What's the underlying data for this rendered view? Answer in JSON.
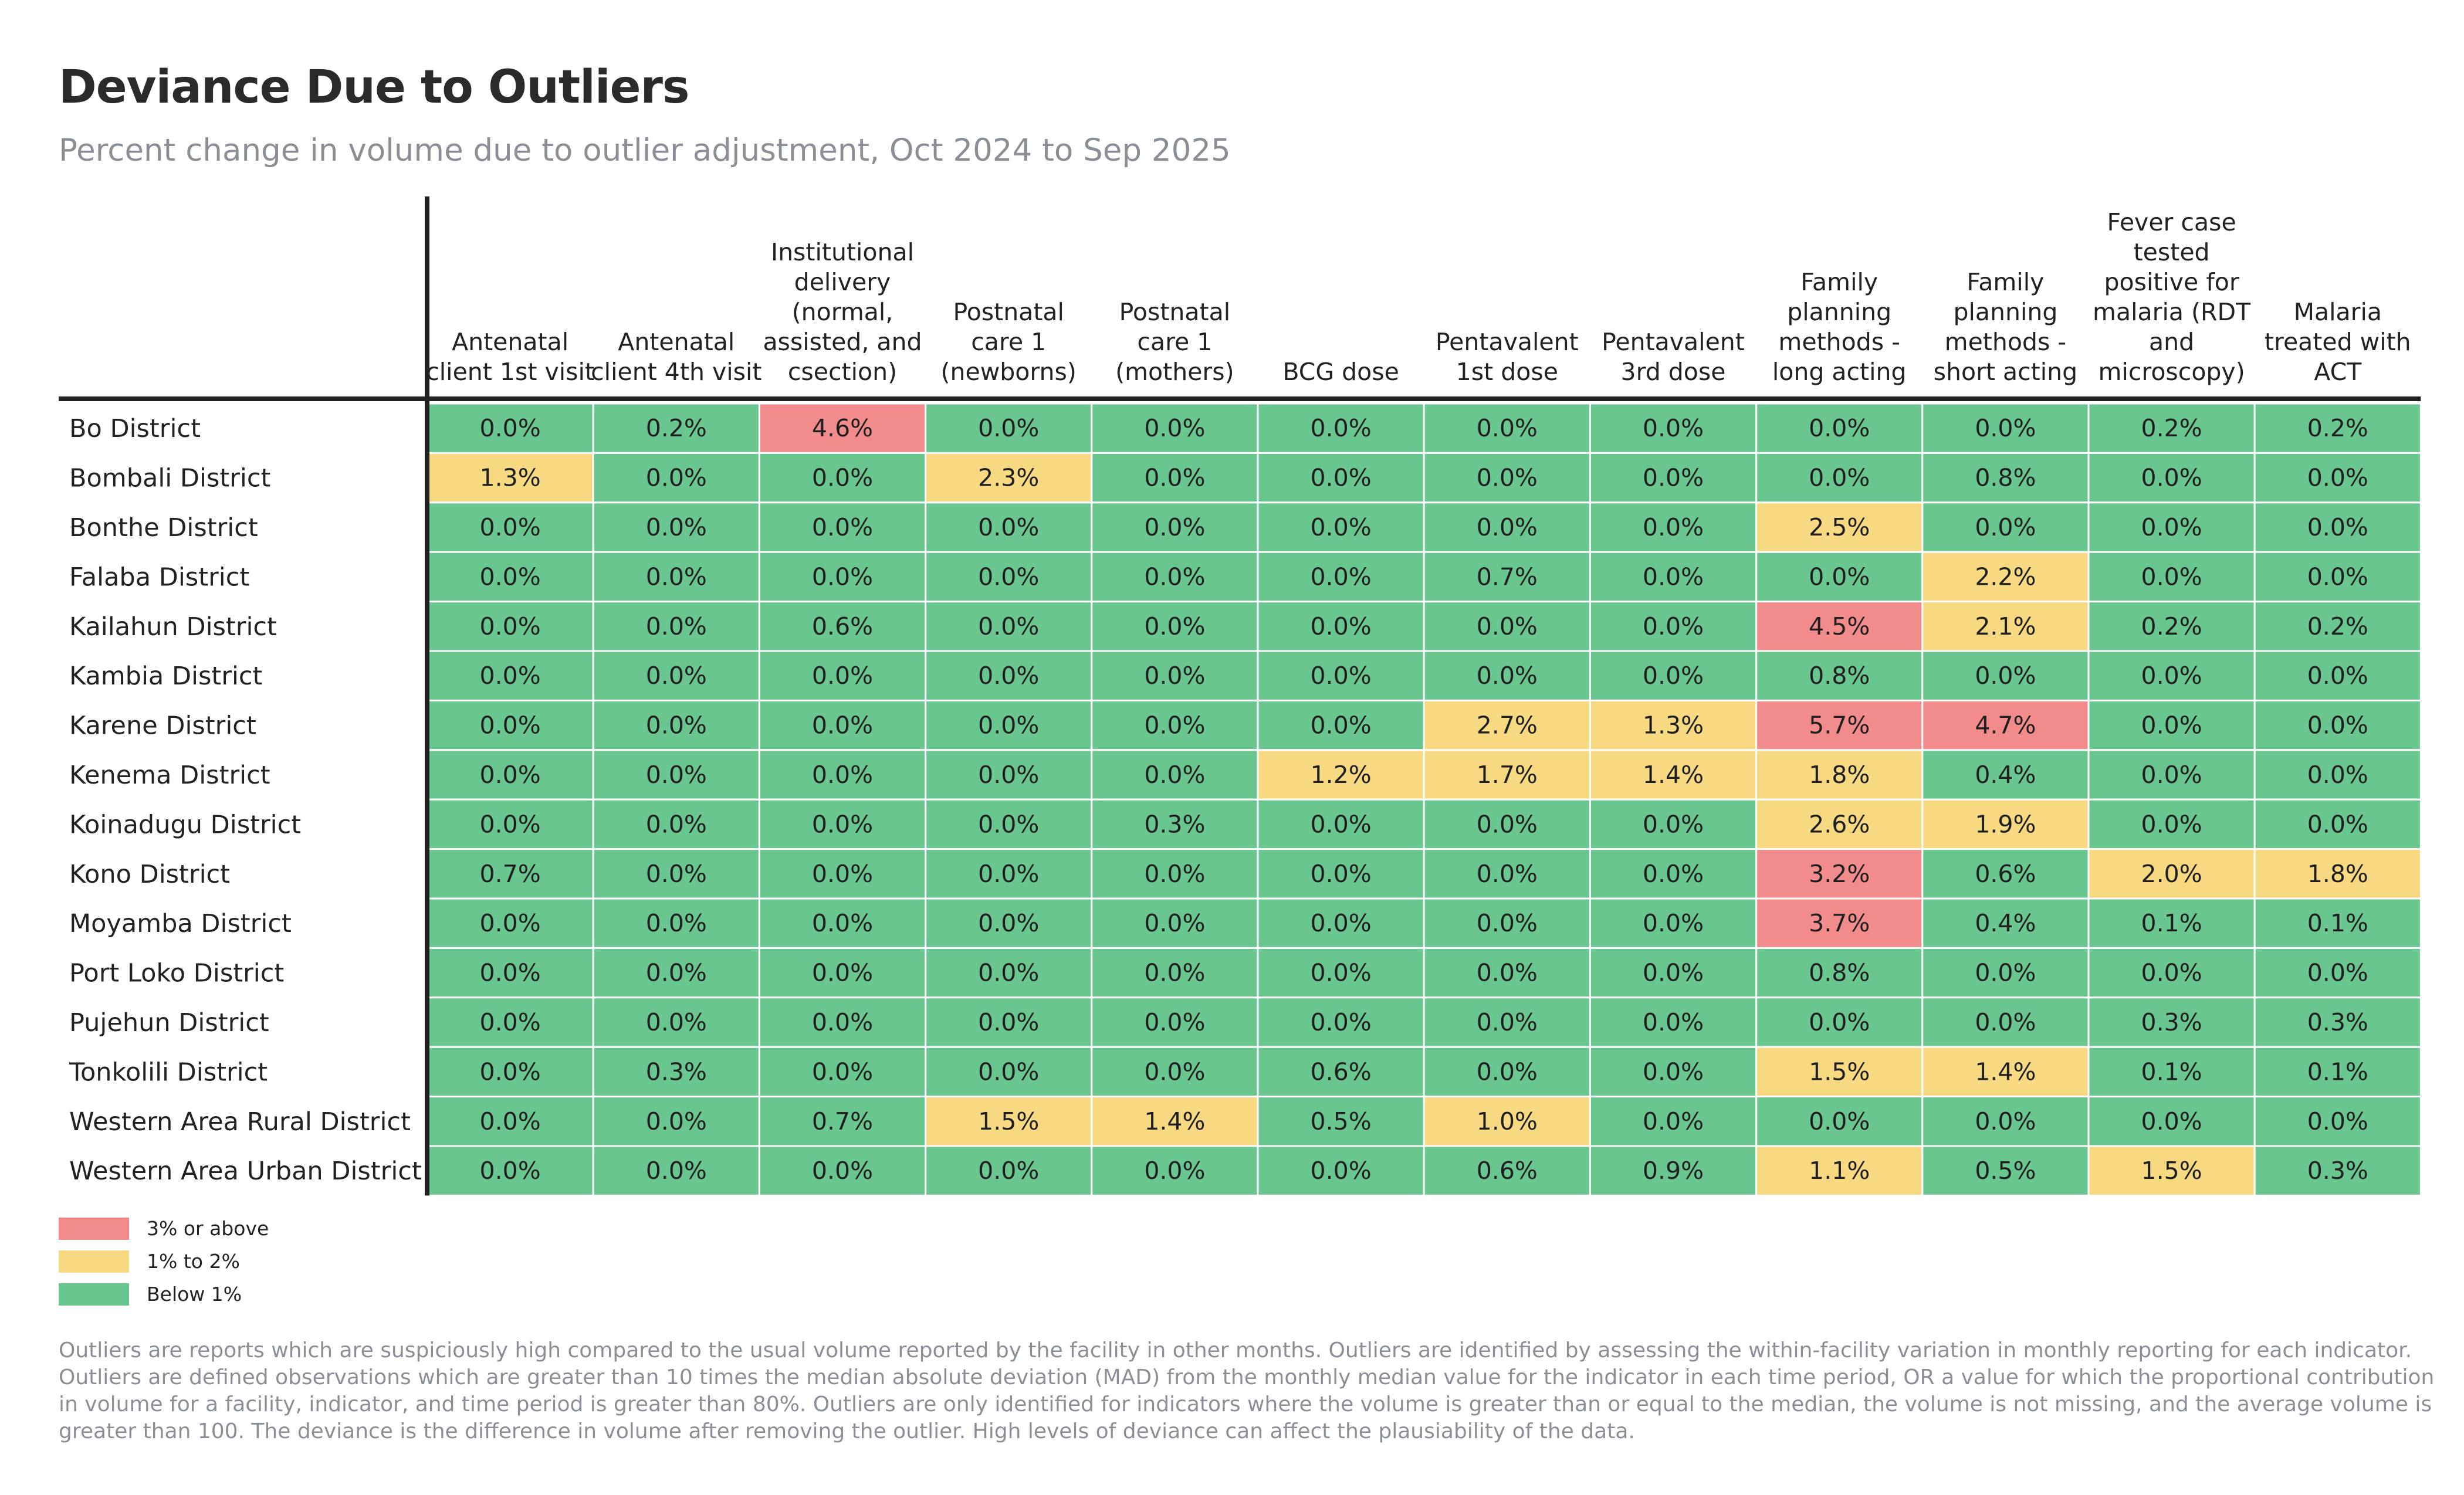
{
  "title": "Deviance Due to Outliers",
  "subtitle": "Percent change in volume due to outlier adjustment, Oct 2024 to Sep 2025",
  "footnote": "Outliers are reports which are suspiciously high compared to the usual volume reported by the facility in other months. Outliers are identified by assessing the within-facility variation in monthly reporting for each indicator. Outliers are defined observations which are greater than 10 times the median absolute deviation (MAD) from the monthly median value for the indicator in each time period, OR a value for which the proportional contribution in volume for a facility, indicator, and time period is greater than 80%. Outliers are only identified for indicators where the volume is greater than or equal to the median, the volume is not missing, and the average volume is greater than 100. The deviance is the difference in volume after removing the outlier. High levels of deviance can affect the plausiability of the data.",
  "colors": {
    "high": "#f28b8b",
    "mid": "#f7d982",
    "low": "#6ac68f",
    "grid": "#ffffff",
    "axis": "#222222"
  },
  "legend": [
    {
      "label": "3% or above",
      "color": "#f28b8b"
    },
    {
      "label": "1% to 2%",
      "color": "#f7d982"
    },
    {
      "label": "Below 1%",
      "color": "#6ac68f"
    }
  ],
  "chart_data": {
    "type": "heatmap",
    "value_format": "percent_1dp",
    "thresholds": {
      "high_min": 3.0,
      "mid_min": 1.0
    },
    "columns": [
      [
        "Antenatal",
        "client 1st visit"
      ],
      [
        "Antenatal",
        "client 4th visit"
      ],
      [
        "Institutional",
        "delivery",
        "(normal,",
        "assisted, and",
        "csection)"
      ],
      [
        "Postnatal",
        "care 1",
        "(newborns)"
      ],
      [
        "Postnatal",
        "care 1",
        "(mothers)"
      ],
      [
        "BCG dose"
      ],
      [
        "Pentavalent",
        "1st dose"
      ],
      [
        "Pentavalent",
        "3rd dose"
      ],
      [
        "Family",
        "planning",
        "methods -",
        "long acting"
      ],
      [
        "Family",
        "planning",
        "methods -",
        "short acting"
      ],
      [
        "Fever case",
        "tested",
        "positive for",
        "malaria (RDT",
        "and",
        "microscopy)"
      ],
      [
        "Malaria",
        "treated with",
        "ACT"
      ]
    ],
    "rows": [
      "Bo District",
      "Bombali District",
      "Bonthe District",
      "Falaba District",
      "Kailahun District",
      "Kambia District",
      "Karene District",
      "Kenema District",
      "Koinadugu District",
      "Kono District",
      "Moyamba District",
      "Port Loko District",
      "Pujehun District",
      "Tonkolili District",
      "Western Area Rural District",
      "Western Area Urban District"
    ],
    "values": [
      [
        0.0,
        0.2,
        4.6,
        0.0,
        0.0,
        0.0,
        0.0,
        0.0,
        0.0,
        0.0,
        0.2,
        0.2
      ],
      [
        1.3,
        0.0,
        0.0,
        2.3,
        0.0,
        0.0,
        0.0,
        0.0,
        0.0,
        0.8,
        0.0,
        0.0
      ],
      [
        0.0,
        0.0,
        0.0,
        0.0,
        0.0,
        0.0,
        0.0,
        0.0,
        2.5,
        0.0,
        0.0,
        0.0
      ],
      [
        0.0,
        0.0,
        0.0,
        0.0,
        0.0,
        0.0,
        0.7,
        0.0,
        0.0,
        2.2,
        0.0,
        0.0
      ],
      [
        0.0,
        0.0,
        0.6,
        0.0,
        0.0,
        0.0,
        0.0,
        0.0,
        4.5,
        2.1,
        0.2,
        0.2
      ],
      [
        0.0,
        0.0,
        0.0,
        0.0,
        0.0,
        0.0,
        0.0,
        0.0,
        0.8,
        0.0,
        0.0,
        0.0
      ],
      [
        0.0,
        0.0,
        0.0,
        0.0,
        0.0,
        0.0,
        2.7,
        1.3,
        5.7,
        4.7,
        0.0,
        0.0
      ],
      [
        0.0,
        0.0,
        0.0,
        0.0,
        0.0,
        1.2,
        1.7,
        1.4,
        1.8,
        0.4,
        0.0,
        0.0
      ],
      [
        0.0,
        0.0,
        0.0,
        0.0,
        0.3,
        0.0,
        0.0,
        0.0,
        2.6,
        1.9,
        0.0,
        0.0
      ],
      [
        0.7,
        0.0,
        0.0,
        0.0,
        0.0,
        0.0,
        0.0,
        0.0,
        3.2,
        0.6,
        2.0,
        1.8
      ],
      [
        0.0,
        0.0,
        0.0,
        0.0,
        0.0,
        0.0,
        0.0,
        0.0,
        3.7,
        0.4,
        0.1,
        0.1
      ],
      [
        0.0,
        0.0,
        0.0,
        0.0,
        0.0,
        0.0,
        0.0,
        0.0,
        0.8,
        0.0,
        0.0,
        0.0
      ],
      [
        0.0,
        0.0,
        0.0,
        0.0,
        0.0,
        0.0,
        0.0,
        0.0,
        0.0,
        0.0,
        0.3,
        0.3
      ],
      [
        0.0,
        0.3,
        0.0,
        0.0,
        0.0,
        0.6,
        0.0,
        0.0,
        1.5,
        1.4,
        0.1,
        0.1
      ],
      [
        0.0,
        0.0,
        0.7,
        1.5,
        1.4,
        0.5,
        1.0,
        0.0,
        0.0,
        0.0,
        0.0,
        0.0
      ],
      [
        0.0,
        0.0,
        0.0,
        0.0,
        0.0,
        0.0,
        0.6,
        0.9,
        1.1,
        0.5,
        1.5,
        0.3
      ]
    ]
  }
}
